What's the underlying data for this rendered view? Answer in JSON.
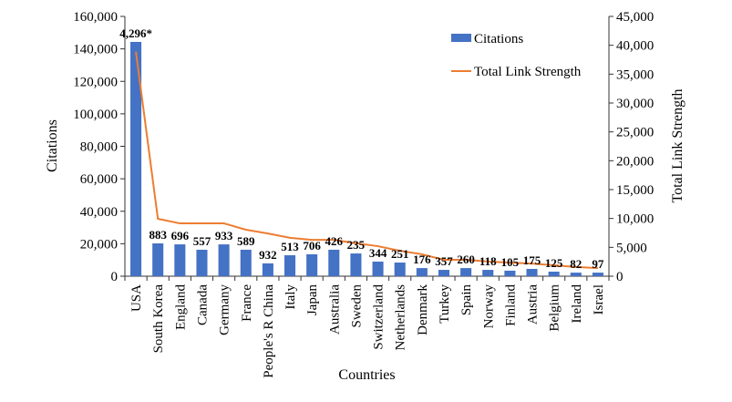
{
  "chart_data": {
    "type": "bar",
    "xlabel": "Countries",
    "ylabel": "Citations",
    "y2label": "Total Link Strength",
    "ylim": [
      0,
      160000
    ],
    "y2lim": [
      0,
      45000
    ],
    "yticks": [
      "0",
      "20,000",
      "40,000",
      "60,000",
      "80,000",
      "100,000",
      "120,000",
      "140,000",
      "160,000"
    ],
    "y2ticks": [
      "0",
      "5,000",
      "10,000",
      "15,000",
      "20,000",
      "25,000",
      "30,000",
      "35,000",
      "40,000",
      "45,000"
    ],
    "legend_position": "top-right",
    "categories": [
      "USA",
      "South Korea",
      "England",
      "Canada",
      "Germany",
      "France",
      "People's R China",
      "Italy",
      "Japan",
      "Australia",
      "Sweden",
      "Switzerland",
      "Netherlands",
      "Denmark",
      "Turkey",
      "Spain",
      "Norway",
      "Finland",
      "Austria",
      "Belgium",
      "Ireland",
      "Israel"
    ],
    "series": [
      {
        "name": "Citations",
        "type": "bar",
        "axis": "left",
        "color": "#4472C4",
        "values": [
          144300,
          20200,
          19600,
          16300,
          19600,
          16300,
          7900,
          12900,
          13500,
          16300,
          14000,
          9000,
          8400,
          5000,
          3900,
          5000,
          3900,
          3400,
          4500,
          2800,
          2200,
          2200
        ]
      },
      {
        "name": "Total Link Strength",
        "type": "line",
        "axis": "right",
        "color": "#ED7D31",
        "values": [
          38900,
          9950,
          9150,
          9150,
          9150,
          8050,
          7400,
          6650,
          6300,
          6300,
          5700,
          5200,
          4400,
          3800,
          2850,
          2850,
          2550,
          2350,
          2200,
          1900,
          1600,
          1400
        ]
      }
    ],
    "data_labels": [
      "4,296*",
      "883",
      "696",
      "557",
      "933",
      "589",
      "932",
      "513",
      "706",
      "426",
      "235",
      "344",
      "251",
      "176",
      "357",
      "260",
      "118",
      "105",
      "175",
      "125",
      "82",
      "97"
    ]
  }
}
